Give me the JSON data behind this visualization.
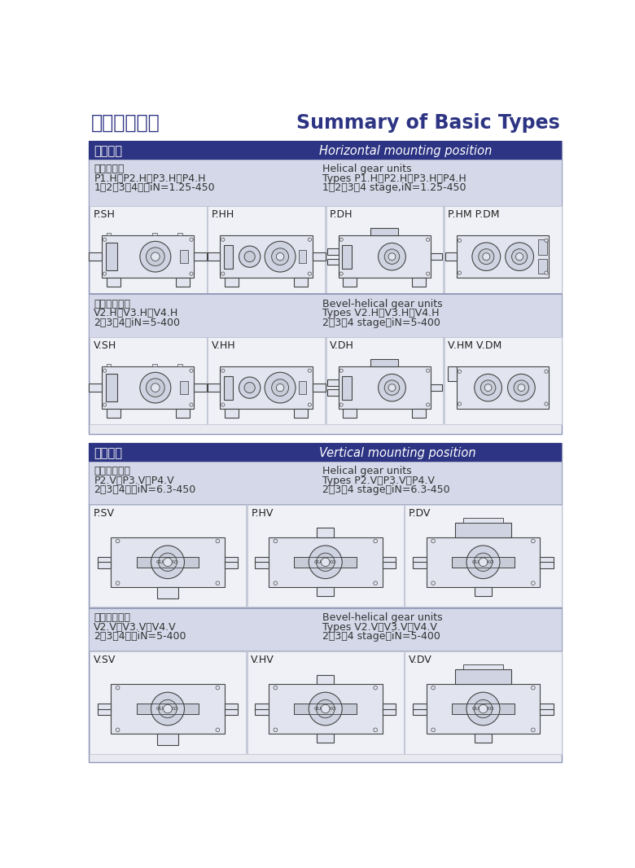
{
  "title_cn": "基本类型概述",
  "title_en": "Summary of Basic Types",
  "bg_color": "#ffffff",
  "header_bg": "#2d3483",
  "header_text": "#ffffff",
  "section_bg": "#d4d8e8",
  "cell_bg": "#f2f3f7",
  "border_color": "#9098b8",
  "section1_header_cn": "卧式安装",
  "section1_header_en": "Horizontal mounting position",
  "section1_sub1_cn_line1": "平行轴轮箱",
  "section1_sub1_cn_line2": "P1.H、P2.H、P3.H、P4.H",
  "section1_sub1_cn_line3": "1、2、3、4级，iN=1.25-450",
  "section1_sub1_en_line1": "Helical gear units",
  "section1_sub1_en_line2": "Types P1.H、P2.H、P3.H、P4.H",
  "section1_sub1_en_line3": "1、2、3、4 stage,iN=1.25-450",
  "section1_items1": [
    "P.SH",
    "P.HH",
    "P.DH",
    "P.HM P.DM"
  ],
  "section1_sub2_cn_line1": "垂直轴齿轮箱",
  "section1_sub2_cn_line2": "V2.H、V3.H、V4.H",
  "section1_sub2_cn_line3": "2、3、4级iN=5-400",
  "section1_sub2_en_line1": "Bevel-helical gear units",
  "section1_sub2_en_line2": "Types V2.H、V3.H、V4.H",
  "section1_sub2_en_line3": "2、3、4 stage，iN=5-400",
  "section1_items2": [
    "V.SH",
    "V.HH",
    "V.DH",
    "V.HM V.DM"
  ],
  "section2_header_cn": "立式安装",
  "section2_header_en": "Vertical mounting position",
  "section2_sub1_cn_line1": "平行轴齿轮箱",
  "section2_sub1_cn_line2": "P2.V、P3.V、P4.V",
  "section2_sub1_cn_line3": "2、3、4级，iN=6.3-450",
  "section2_sub1_en_line1": "Helical gear units",
  "section2_sub1_en_line2": "Types P2.V、P3.V、P4.V",
  "section2_sub1_en_line3": "2、3、4 stage，iN=6.3-450",
  "section2_items1": [
    "P.SV",
    "P.HV",
    "P.DV"
  ],
  "section2_sub2_cn_line1": "垂直轴齿轮箱",
  "section2_sub2_cn_line2": "V2.V、V3.V、V4.V",
  "section2_sub2_cn_line3": "2、3、4级，iN=5-400",
  "section2_sub2_en_line1": "Bevel-helical gear units",
  "section2_sub2_en_line2": "Types V2.V、V3.V、V4.V",
  "section2_sub2_en_line3": "2、3、4 stage，iN=5-400",
  "section2_items2": [
    "V.SV",
    "V.HV",
    "V.DV"
  ]
}
